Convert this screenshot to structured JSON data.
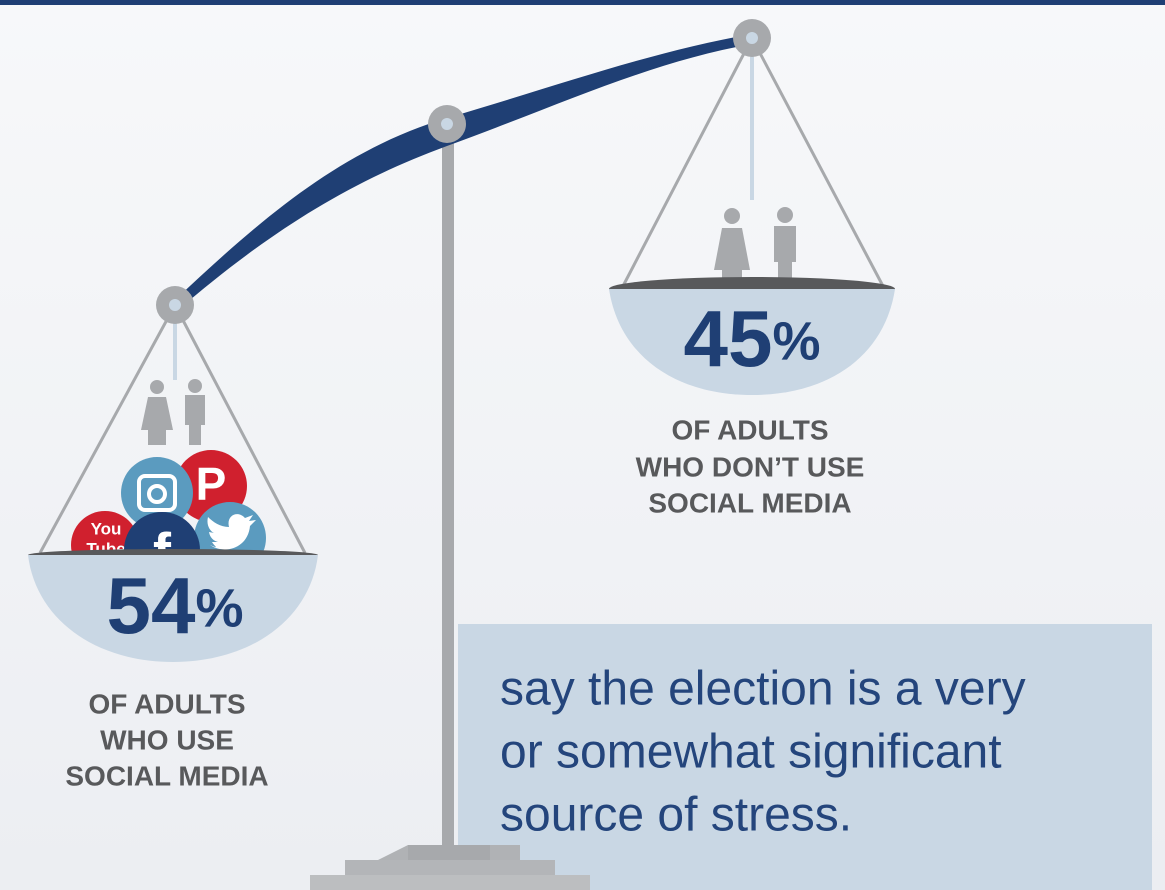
{
  "left": {
    "number": "54",
    "unit": "%",
    "caption": [
      "OF ADULTS",
      "WHO USE",
      "SOCIAL MEDIA"
    ],
    "icons": {
      "youtube": [
        "You",
        "Tube"
      ],
      "facebook": "f",
      "pinterest": "P"
    }
  },
  "right": {
    "number": "45",
    "unit": "%",
    "caption": [
      "OF ADULTS",
      "WHO DON’T USE",
      "SOCIAL MEDIA"
    ]
  },
  "message": [
    "say the election is a very",
    "or somewhat significant",
    "source of stress."
  ]
}
